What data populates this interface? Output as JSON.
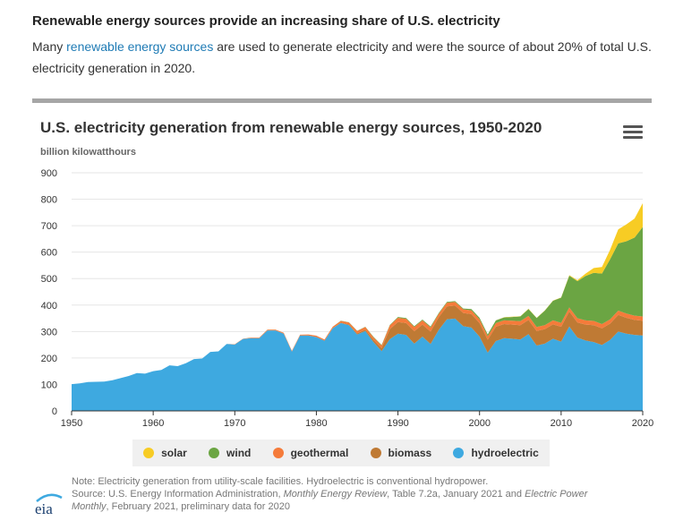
{
  "page": {
    "heading": "Renewable energy sources provide an increasing share of U.S. electricity",
    "intro_before": "Many ",
    "intro_link": "renewable energy sources",
    "intro_after": " are used to generate electricity and were the source of about 20% of total U.S. electricity generation in 2020."
  },
  "note": {
    "line1": "Note: Electricity generation from utility-scale facilities. Hydroelectric is conventional hydropower.",
    "line2_a": "Source: U.S. Energy Information Administration, ",
    "line2_b": "Monthly Energy Review",
    "line2_c": ", Table 7.2a, January 2021 and ",
    "line2_d": "Electric Power",
    "line3_a": "Monthly",
    "line3_b": ", February 2021, preliminary data for 2020"
  },
  "logo": {
    "text": "eia"
  },
  "icons": {
    "menu": "hamburger-menu-icon"
  },
  "chart_data": {
    "type": "area",
    "stacked": true,
    "title": "U.S. electricity generation from renewable energy sources, 1950-2020",
    "ylabel": "billion kilowatthours",
    "xlim": [
      1950,
      2020
    ],
    "ylim": [
      0,
      900
    ],
    "yticks": [
      0,
      100,
      200,
      300,
      400,
      500,
      600,
      700,
      800,
      900
    ],
    "xticks": [
      1950,
      1960,
      1970,
      1980,
      1990,
      2000,
      2010,
      2020
    ],
    "grid": true,
    "legend_position": "bottom",
    "x": [
      1950,
      1951,
      1952,
      1953,
      1954,
      1955,
      1956,
      1957,
      1958,
      1959,
      1960,
      1961,
      1962,
      1963,
      1964,
      1965,
      1966,
      1967,
      1968,
      1969,
      1970,
      1971,
      1972,
      1973,
      1974,
      1975,
      1976,
      1977,
      1978,
      1979,
      1980,
      1981,
      1982,
      1983,
      1984,
      1985,
      1986,
      1987,
      1988,
      1989,
      1990,
      1991,
      1992,
      1993,
      1994,
      1995,
      1996,
      1997,
      1998,
      1999,
      2000,
      2001,
      2002,
      2003,
      2004,
      2005,
      2006,
      2007,
      2008,
      2009,
      2010,
      2011,
      2012,
      2013,
      2014,
      2015,
      2016,
      2017,
      2018,
      2019,
      2020
    ],
    "series": [
      {
        "name": "hydroelectric",
        "color": "#3ea9e0",
        "values": [
          101,
          104,
          109,
          110,
          111,
          116,
          124,
          132,
          143,
          141,
          150,
          155,
          172,
          169,
          180,
          196,
          198,
          223,
          225,
          253,
          251,
          272,
          275,
          275,
          304,
          304,
          292,
          224,
          285,
          285,
          279,
          265,
          312,
          332,
          324,
          289,
          302,
          260,
          226,
          271,
          292,
          287,
          254,
          281,
          253,
          306,
          346,
          349,
          320,
          315,
          281,
          220,
          264,
          275,
          273,
          270,
          290,
          247,
          254,
          273,
          262,
          319,
          277,
          266,
          260,
          249,
          268,
          300,
          292,
          287,
          285
        ]
      },
      {
        "name": "biomass",
        "color": "#bf7a34",
        "values": [
          0,
          0,
          0,
          0,
          0,
          0,
          0,
          0,
          0,
          0,
          0,
          0,
          0,
          0,
          0,
          0,
          0,
          0,
          0,
          0,
          0,
          0,
          0,
          0,
          0,
          0,
          0,
          0,
          0,
          0,
          0,
          0,
          1,
          2,
          3,
          4,
          5,
          8,
          11,
          38,
          44,
          45,
          47,
          45,
          47,
          48,
          49,
          49,
          50,
          51,
          51,
          49,
          54,
          53,
          53,
          54,
          54,
          55,
          55,
          54,
          56,
          57,
          57,
          60,
          64,
          63,
          62,
          63,
          60,
          57,
          56
        ]
      },
      {
        "name": "geothermal",
        "color": "#f57b3a",
        "values": [
          0,
          0,
          0,
          0,
          0,
          0,
          0,
          0,
          0,
          0,
          0,
          0,
          0,
          0,
          0,
          0,
          0,
          0,
          0,
          0,
          1,
          1,
          2,
          2,
          3,
          3,
          3,
          3,
          3,
          4,
          5,
          5,
          5,
          6,
          7,
          9,
          10,
          10,
          10,
          14,
          16,
          16,
          16,
          16,
          15,
          13,
          14,
          14,
          14,
          14,
          14,
          13,
          14,
          14,
          15,
          15,
          15,
          15,
          15,
          15,
          15,
          15,
          16,
          16,
          16,
          16,
          16,
          16,
          16,
          16,
          16
        ]
      },
      {
        "name": "wind",
        "color": "#6ba543",
        "values": [
          0,
          0,
          0,
          0,
          0,
          0,
          0,
          0,
          0,
          0,
          0,
          0,
          0,
          0,
          0,
          0,
          0,
          0,
          0,
          0,
          0,
          0,
          0,
          0,
          0,
          0,
          0,
          0,
          0,
          0,
          0,
          0,
          0,
          1,
          1,
          1,
          1,
          2,
          2,
          2,
          3,
          3,
          3,
          3,
          4,
          3,
          3,
          3,
          3,
          5,
          6,
          7,
          10,
          11,
          14,
          18,
          26,
          34,
          55,
          74,
          95,
          120,
          140,
          168,
          182,
          191,
          227,
          254,
          273,
          295,
          338
        ]
      },
      {
        "name": "solar",
        "color": "#f7cc24",
        "values": [
          0,
          0,
          0,
          0,
          0,
          0,
          0,
          0,
          0,
          0,
          0,
          0,
          0,
          0,
          0,
          0,
          0,
          0,
          0,
          0,
          0,
          0,
          0,
          0,
          0,
          0,
          0,
          0,
          0,
          0,
          0,
          0,
          0,
          0,
          0,
          0,
          0,
          0,
          0,
          0,
          0,
          0,
          0,
          0,
          0,
          0,
          0,
          0,
          0,
          0,
          0,
          0,
          0,
          1,
          1,
          1,
          1,
          1,
          1,
          1,
          1,
          2,
          4,
          9,
          18,
          25,
          36,
          53,
          64,
          72,
          90
        ]
      }
    ],
    "legend_order": [
      "solar",
      "wind",
      "geothermal",
      "biomass",
      "hydroelectric"
    ]
  }
}
